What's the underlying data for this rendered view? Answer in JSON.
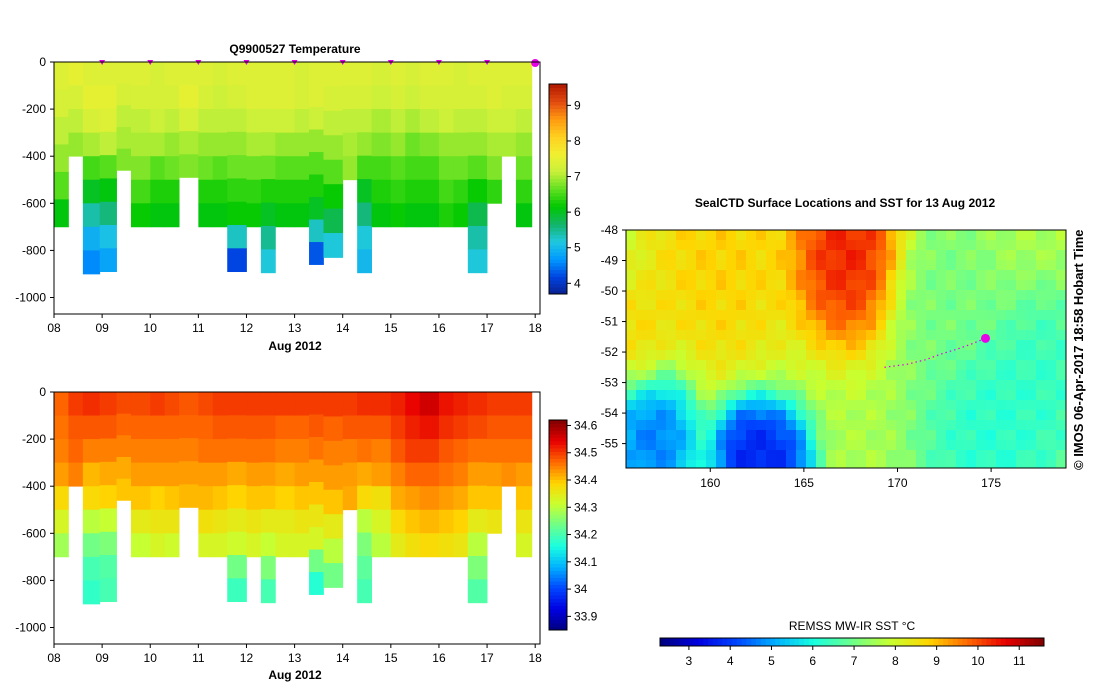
{
  "colors": {
    "jet": [
      "#00007f",
      "#0000e0",
      "#0045ff",
      "#00b0ff",
      "#19ffe0",
      "#6cff8b",
      "#c8ff30",
      "#ffd500",
      "#ff6a00",
      "#e80000",
      "#7f0000"
    ],
    "temp_scale": [
      "#0a1f8f",
      "#0044e0",
      "#0099ff",
      "#20c8e0",
      "#13b46a",
      "#00c800",
      "#60e020",
      "#c8f03a",
      "#f0f030",
      "#ffd020",
      "#ff9a10",
      "#e24a10",
      "#b01800"
    ],
    "profile_marker": "#e800e8",
    "track_marker": "#e800e8"
  },
  "panels": {
    "temperature": {
      "title": "Q9900527  Temperature",
      "xlabel": "Aug 2012",
      "x_ticks": [
        "08",
        "09",
        "10",
        "11",
        "12",
        "13",
        "14",
        "15",
        "16",
        "17",
        "18"
      ],
      "y_ticks": [
        "0",
        "-200",
        "-400",
        "-600",
        "-800",
        "-1000"
      ],
      "colorbar_ticks": [
        "4",
        "5",
        "6",
        "7",
        "8",
        "9"
      ]
    },
    "salinity": {
      "title": "",
      "xlabel": "Aug 2012",
      "x_ticks": [
        "08",
        "09",
        "10",
        "11",
        "12",
        "13",
        "14",
        "15",
        "16",
        "17",
        "18"
      ],
      "y_ticks": [
        "0",
        "-200",
        "-400",
        "-600",
        "-800",
        "-1000"
      ],
      "colorbar_ticks": [
        "33.9",
        "34",
        "34.1",
        "34.2",
        "34.3",
        "34.4",
        "34.5",
        "34.6"
      ]
    },
    "map": {
      "title": "SealCTD Surface Locations and SST for 13 Aug 2012",
      "lon_ticks": [
        "160",
        "165",
        "170",
        "175"
      ],
      "lat_ticks": [
        "-48",
        "-49",
        "-50",
        "-51",
        "-52",
        "-53",
        "-54",
        "-55"
      ],
      "colorbar_title": "REMSS MW-IR SST °C",
      "colorbar_ticks": [
        "3",
        "4",
        "5",
        "6",
        "7",
        "8",
        "9",
        "10",
        "11"
      ],
      "credit": "© IMOS 06-Apr-2017 18:58 Hobart Time"
    }
  },
  "chart_data": [
    {
      "type": "heatmap",
      "title": "Q9900527  Temperature",
      "xlabel": "Aug 2012",
      "ylabel": "",
      "xlim": [
        8,
        18.1
      ],
      "ylim": [
        -1070,
        0
      ],
      "colorbar_range": [
        3.7,
        9.6
      ],
      "x_ticks": [
        8,
        9,
        10,
        11,
        12,
        13,
        14,
        15,
        16,
        17,
        18
      ],
      "y_ticks": [
        0,
        -200,
        -400,
        -600,
        -800,
        -1000
      ],
      "profile_days": [
        9,
        10,
        11,
        12,
        13,
        14,
        15,
        16,
        17,
        18
      ],
      "profiles": [
        {
          "day": 8.0,
          "max_depth": 700,
          "values": [
            7.4,
            7.3,
            7.1,
            6.9,
            6.6,
            6.1
          ]
        },
        {
          "day": 8.3,
          "max_depth": 400,
          "values": [
            7.5,
            7.3,
            7.1,
            6.9
          ]
        },
        {
          "day": 8.6,
          "max_depth": 900,
          "values": [
            7.4,
            7.5,
            7.3,
            7.0,
            6.5,
            6.0,
            5.4,
            4.9,
            4.6
          ]
        },
        {
          "day": 8.95,
          "max_depth": 890,
          "values": [
            7.4,
            7.5,
            7.4,
            7.1,
            6.6,
            6.1,
            5.6,
            5.1,
            4.8
          ]
        },
        {
          "day": 9.3,
          "max_depth": 460,
          "values": [
            7.4,
            7.3,
            7.1,
            7.0,
            6.8
          ]
        },
        {
          "day": 9.6,
          "max_depth": 700,
          "values": [
            7.4,
            7.3,
            7.1,
            7.0,
            6.8,
            6.5,
            6.2
          ]
        },
        {
          "day": 10.0,
          "max_depth": 700,
          "values": [
            7.3,
            7.3,
            7.2,
            7.0,
            6.6,
            6.3,
            6.1
          ]
        },
        {
          "day": 10.3,
          "max_depth": 700,
          "values": [
            7.4,
            7.3,
            7.1,
            6.9,
            6.7,
            6.3,
            6.1
          ]
        },
        {
          "day": 10.6,
          "max_depth": 490,
          "values": [
            7.4,
            7.5,
            7.3,
            7.0,
            6.8
          ]
        },
        {
          "day": 11.0,
          "max_depth": 700,
          "values": [
            7.4,
            7.3,
            7.1,
            6.9,
            6.7,
            6.3,
            6.1
          ]
        },
        {
          "day": 11.3,
          "max_depth": 700,
          "values": [
            7.3,
            7.2,
            7.1,
            6.9,
            6.6,
            6.3,
            6.1
          ]
        },
        {
          "day": 11.6,
          "max_depth": 890,
          "values": [
            7.4,
            7.3,
            7.1,
            6.9,
            6.7,
            6.4,
            6.2,
            5.3,
            4.2
          ]
        },
        {
          "day": 12.0,
          "max_depth": 700,
          "values": [
            7.4,
            7.4,
            7.2,
            7.0,
            6.7,
            6.4,
            6.2
          ]
        },
        {
          "day": 12.3,
          "max_depth": 895,
          "values": [
            7.4,
            7.4,
            7.2,
            7.0,
            6.7,
            6.3,
            6.0,
            5.5,
            5.2
          ]
        },
        {
          "day": 12.6,
          "max_depth": 700,
          "values": [
            7.4,
            7.4,
            7.2,
            6.9,
            6.6,
            6.3,
            6.1
          ]
        },
        {
          "day": 13.0,
          "max_depth": 700,
          "values": [
            7.3,
            7.3,
            7.1,
            6.9,
            6.6,
            6.3,
            6.1
          ]
        },
        {
          "day": 13.3,
          "max_depth": 860,
          "values": [
            7.4,
            7.4,
            7.2,
            6.9,
            6.6,
            6.3,
            6.0,
            5.3,
            4.3
          ]
        },
        {
          "day": 13.6,
          "max_depth": 830,
          "values": [
            7.4,
            7.3,
            7.1,
            6.9,
            6.6,
            6.2,
            5.8,
            5.2
          ]
        },
        {
          "day": 14.0,
          "max_depth": 500,
          "values": [
            7.4,
            7.3,
            7.1,
            7.0,
            6.9
          ]
        },
        {
          "day": 14.3,
          "max_depth": 895,
          "values": [
            7.4,
            7.3,
            7.1,
            6.9,
            6.5,
            6.0,
            5.6,
            5.2,
            5.0
          ]
        },
        {
          "day": 14.6,
          "max_depth": 700,
          "values": [
            7.3,
            7.2,
            7.0,
            6.8,
            6.5,
            6.3,
            6.1
          ]
        },
        {
          "day": 15.0,
          "max_depth": 700,
          "values": [
            7.4,
            7.3,
            7.1,
            6.9,
            6.6,
            6.4,
            6.2
          ]
        },
        {
          "day": 15.3,
          "max_depth": 700,
          "values": [
            7.3,
            7.2,
            7.0,
            6.7,
            6.5,
            6.3,
            6.1
          ]
        },
        {
          "day": 15.6,
          "max_depth": 700,
          "values": [
            7.4,
            7.3,
            7.1,
            6.8,
            6.5,
            6.3,
            6.1
          ]
        },
        {
          "day": 16.0,
          "max_depth": 700,
          "values": [
            7.4,
            7.3,
            7.2,
            6.9,
            6.7,
            6.5,
            6.3
          ]
        },
        {
          "day": 16.3,
          "max_depth": 700,
          "values": [
            7.3,
            7.3,
            7.1,
            6.9,
            6.7,
            6.4,
            6.2
          ]
        },
        {
          "day": 16.6,
          "max_depth": 895,
          "values": [
            7.4,
            7.3,
            7.1,
            6.9,
            6.6,
            6.2,
            5.8,
            5.4,
            5.2
          ]
        },
        {
          "day": 17.0,
          "max_depth": 600,
          "values": [
            7.4,
            7.4,
            7.2,
            7.0,
            6.8,
            6.4
          ]
        },
        {
          "day": 17.3,
          "max_depth": 400,
          "values": [
            7.4,
            7.3,
            7.2,
            7.0
          ]
        },
        {
          "day": 17.6,
          "max_depth": 700,
          "values": [
            7.4,
            7.3,
            7.1,
            6.9,
            6.7,
            6.4,
            6.1
          ]
        }
      ]
    },
    {
      "type": "heatmap",
      "title": "",
      "xlabel": "Aug 2012",
      "ylabel": "",
      "xlim": [
        8,
        18.1
      ],
      "ylim": [
        -1070,
        0
      ],
      "colorbar_range": [
        33.85,
        34.62
      ],
      "x_ticks": [
        8,
        9,
        10,
        11,
        12,
        13,
        14,
        15,
        16,
        17,
        18
      ],
      "y_ticks": [
        0,
        -200,
        -400,
        -600,
        -800,
        -1000
      ],
      "profiles": [
        {
          "day": 8.0,
          "max_depth": 700,
          "values": [
            34.47,
            34.46,
            34.45,
            34.43,
            34.38,
            34.33,
            34.28
          ]
        },
        {
          "day": 8.3,
          "max_depth": 400,
          "values": [
            34.5,
            34.48,
            34.47,
            34.45
          ]
        },
        {
          "day": 8.6,
          "max_depth": 900,
          "values": [
            34.51,
            34.48,
            34.45,
            34.41,
            34.38,
            34.3,
            34.24,
            34.2,
            34.18
          ]
        },
        {
          "day": 8.95,
          "max_depth": 890,
          "values": [
            34.5,
            34.48,
            34.45,
            34.42,
            34.39,
            34.31,
            34.25,
            34.21,
            34.2
          ]
        },
        {
          "day": 9.3,
          "max_depth": 460,
          "values": [
            34.49,
            34.47,
            34.45,
            34.42,
            34.4
          ]
        },
        {
          "day": 9.6,
          "max_depth": 700,
          "values": [
            34.49,
            34.47,
            34.45,
            34.43,
            34.4,
            34.35,
            34.31
          ]
        },
        {
          "day": 10.0,
          "max_depth": 700,
          "values": [
            34.5,
            34.47,
            34.45,
            34.43,
            34.39,
            34.36,
            34.33
          ]
        },
        {
          "day": 10.3,
          "max_depth": 700,
          "values": [
            34.49,
            34.47,
            34.45,
            34.43,
            34.4,
            34.36,
            34.32
          ]
        },
        {
          "day": 10.6,
          "max_depth": 490,
          "values": [
            34.48,
            34.47,
            34.45,
            34.43,
            34.41
          ]
        },
        {
          "day": 11.0,
          "max_depth": 700,
          "values": [
            34.49,
            34.47,
            34.46,
            34.43,
            34.41,
            34.37,
            34.33
          ]
        },
        {
          "day": 11.3,
          "max_depth": 700,
          "values": [
            34.5,
            34.48,
            34.46,
            34.43,
            34.4,
            34.36,
            34.33
          ]
        },
        {
          "day": 11.6,
          "max_depth": 890,
          "values": [
            34.5,
            34.48,
            34.46,
            34.42,
            34.39,
            34.35,
            34.32,
            34.24,
            34.19
          ]
        },
        {
          "day": 12.0,
          "max_depth": 700,
          "values": [
            34.5,
            34.48,
            34.46,
            34.43,
            34.4,
            34.36,
            34.33
          ]
        },
        {
          "day": 12.3,
          "max_depth": 895,
          "values": [
            34.5,
            34.48,
            34.46,
            34.43,
            34.4,
            34.35,
            34.31,
            34.25,
            34.2
          ]
        },
        {
          "day": 12.6,
          "max_depth": 700,
          "values": [
            34.5,
            34.47,
            34.45,
            34.42,
            34.39,
            34.35,
            34.33
          ]
        },
        {
          "day": 13.0,
          "max_depth": 700,
          "values": [
            34.5,
            34.47,
            34.45,
            34.43,
            34.4,
            34.36,
            34.33
          ]
        },
        {
          "day": 13.3,
          "max_depth": 860,
          "values": [
            34.5,
            34.48,
            34.46,
            34.43,
            34.4,
            34.36,
            34.33,
            34.24,
            34.17
          ]
        },
        {
          "day": 13.6,
          "max_depth": 830,
          "values": [
            34.5,
            34.47,
            34.45,
            34.43,
            34.4,
            34.35,
            34.3,
            34.24
          ]
        },
        {
          "day": 14.0,
          "max_depth": 500,
          "values": [
            34.5,
            34.48,
            34.45,
            34.43,
            34.42
          ]
        },
        {
          "day": 14.3,
          "max_depth": 895,
          "values": [
            34.51,
            34.48,
            34.46,
            34.42,
            34.38,
            34.3,
            34.25,
            34.22,
            34.2
          ]
        },
        {
          "day": 14.6,
          "max_depth": 700,
          "values": [
            34.51,
            34.48,
            34.45,
            34.43,
            34.37,
            34.33,
            34.3
          ]
        },
        {
          "day": 15.0,
          "max_depth": 700,
          "values": [
            34.52,
            34.5,
            34.48,
            34.45,
            34.42,
            34.38,
            34.35
          ]
        },
        {
          "day": 15.3,
          "max_depth": 700,
          "values": [
            34.54,
            34.52,
            34.5,
            34.47,
            34.43,
            34.4,
            34.37
          ]
        },
        {
          "day": 15.6,
          "max_depth": 700,
          "values": [
            34.56,
            34.53,
            34.5,
            34.47,
            34.44,
            34.41,
            34.38
          ]
        },
        {
          "day": 16.0,
          "max_depth": 700,
          "values": [
            34.53,
            34.51,
            34.48,
            34.46,
            34.43,
            34.4,
            34.37
          ]
        },
        {
          "day": 16.3,
          "max_depth": 700,
          "values": [
            34.52,
            34.5,
            34.47,
            34.45,
            34.42,
            34.39,
            34.36
          ]
        },
        {
          "day": 16.6,
          "max_depth": 895,
          "values": [
            34.51,
            34.49,
            34.46,
            34.43,
            34.4,
            34.35,
            34.3,
            34.25,
            34.21
          ]
        },
        {
          "day": 17.0,
          "max_depth": 600,
          "values": [
            34.5,
            34.48,
            34.46,
            34.43,
            34.4,
            34.36
          ]
        },
        {
          "day": 17.3,
          "max_depth": 400,
          "values": [
            34.5,
            34.48,
            34.46,
            34.44
          ]
        },
        {
          "day": 17.6,
          "max_depth": 700,
          "values": [
            34.5,
            34.48,
            34.46,
            34.43,
            34.4,
            34.36,
            34.33
          ]
        }
      ]
    },
    {
      "type": "heatmap",
      "title": "SealCTD Surface Locations and SST for 13 Aug 2012",
      "xlim": [
        155.5,
        179
      ],
      "ylim": [
        -55.8,
        -48
      ],
      "x_ticks": [
        160,
        165,
        170,
        175
      ],
      "y_ticks": [
        -48,
        -49,
        -50,
        -51,
        -52,
        -53,
        -54,
        -55
      ],
      "colorbar_range": [
        2.3,
        11.6
      ],
      "colorbar_title": "REMSS MW-IR SST °C",
      "sst_features": [
        {
          "lon": 167.2,
          "lat": -48.7,
          "value": 10.8,
          "radius": 3.2
        },
        {
          "lon": 160.5,
          "lat": -48.8,
          "value": 9.0,
          "radius": 4.5
        },
        {
          "lon": 157.0,
          "lat": -54.8,
          "value": 4.2,
          "radius": 2.5
        },
        {
          "lon": 162.0,
          "lat": -55.3,
          "value": 3.2,
          "radius": 2.0
        },
        {
          "lon": 163.5,
          "lat": -55.6,
          "value": 3.4,
          "radius": 2.0
        },
        {
          "lon": 175.0,
          "lat": -55.0,
          "value": 6.0,
          "radius": 4.0
        },
        {
          "lon": 178.0,
          "lat": -53.0,
          "value": 6.2,
          "radius": 3.0
        },
        {
          "lon": 172.5,
          "lat": -50.2,
          "value": 7.0,
          "radius": 3.0
        },
        {
          "lon": 156.2,
          "lat": -51.5,
          "value": 8.8,
          "radius": 2.0
        }
      ],
      "track": [
        {
          "lon": 169.3,
          "lat": -52.5
        },
        {
          "lon": 170.5,
          "lat": -52.4
        },
        {
          "lon": 171.5,
          "lat": -52.25
        },
        {
          "lon": 172.4,
          "lat": -52.05
        },
        {
          "lon": 173.2,
          "lat": -51.9
        },
        {
          "lon": 173.9,
          "lat": -51.75
        },
        {
          "lon": 174.7,
          "lat": -51.55
        }
      ],
      "current_location": {
        "lon": 174.7,
        "lat": -51.55
      }
    }
  ]
}
